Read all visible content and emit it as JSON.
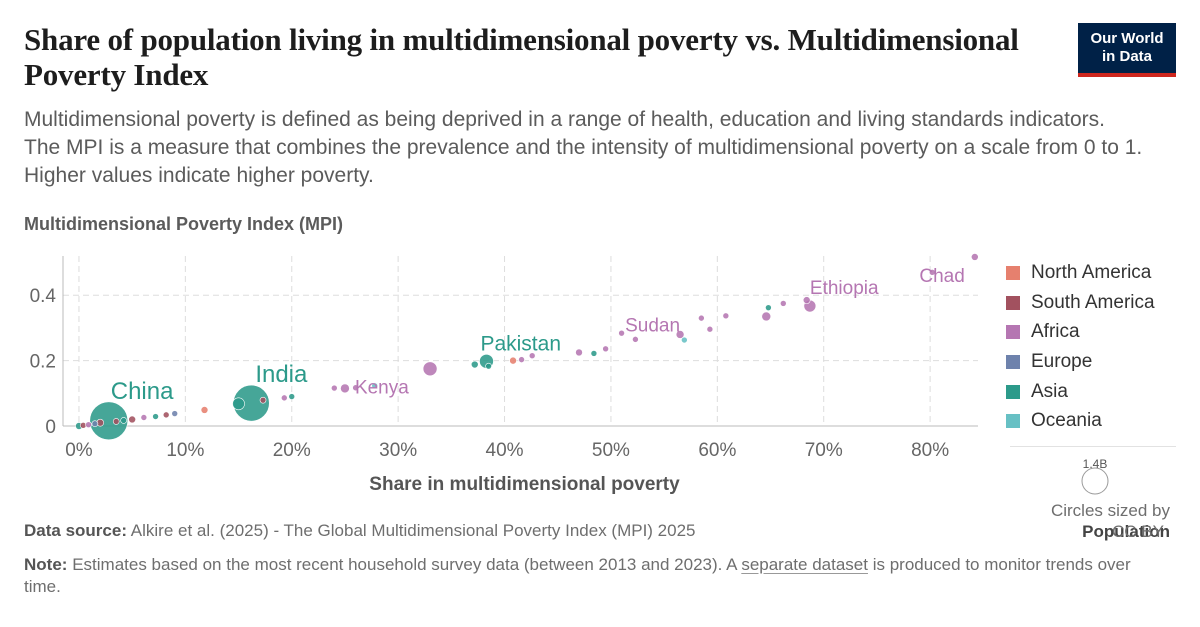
{
  "header": {
    "title": "Share of population living in multidimensional poverty vs. Multidimensional Poverty Index",
    "subtitle": "Multidimensional poverty is defined as being deprived in a range of health, education and living standards indicators. The MPI is a measure that combines the prevalence and the intensity of multidimensional poverty on a scale from 0 to 1. Higher values indicate higher poverty.",
    "logo_line1": "Our World",
    "logo_line2": "in Data"
  },
  "legend": {
    "items": [
      {
        "label": "North America",
        "color": "#e6806e"
      },
      {
        "label": "South America",
        "color": "#a2515f"
      },
      {
        "label": "Africa",
        "color": "#b576b2"
      },
      {
        "label": "Europe",
        "color": "#6e82ac"
      },
      {
        "label": "Asia",
        "color": "#2c9a8a"
      },
      {
        "label": "Oceania",
        "color": "#67c0c4"
      }
    ],
    "size_value": "1.4B",
    "size_caption": "Circles sized by",
    "size_variable": "Population"
  },
  "footer": {
    "source_label": "Data source:",
    "source_text": "Alkire et al. (2025) - The Global Multidimensional Poverty Index (MPI) 2025",
    "note_label": "Note:",
    "note_text_before": "Estimates based on the most recent household survey data (between 2013 and 2023). A",
    "note_link": "separate dataset",
    "note_text_after": "is produced to monitor trends over time.",
    "license": "CC BY"
  },
  "chart_data": {
    "type": "scatter",
    "xlabel": "Share in multidimensional poverty",
    "ylabel": "Multidimensional Poverty Index (MPI)",
    "xlim": [
      -1.5,
      84.5
    ],
    "ylim": [
      0,
      0.52
    ],
    "xticks": [
      0,
      10,
      20,
      30,
      40,
      50,
      60,
      70,
      80
    ],
    "xtick_labels": [
      "0%",
      "10%",
      "20%",
      "30%",
      "40%",
      "50%",
      "60%",
      "70%",
      "80%"
    ],
    "yticks": [
      0,
      0.2,
      0.4
    ],
    "ytick_labels": [
      "0",
      "0.2",
      "0.4"
    ],
    "grid": true,
    "points": [
      {
        "x": 2.8,
        "y": 0.016,
        "region": "Asia",
        "r": 19,
        "label": "China"
      },
      {
        "x": 16.2,
        "y": 0.07,
        "region": "Asia",
        "r": 18,
        "label": "India"
      },
      {
        "x": 38.3,
        "y": 0.198,
        "region": "Asia",
        "r": 7,
        "label": "Pakistan"
      },
      {
        "x": 25.0,
        "y": 0.115,
        "region": "Africa",
        "r": 4.5,
        "label": "Kenya"
      },
      {
        "x": 56.5,
        "y": 0.28,
        "region": "Africa",
        "r": 4,
        "label": "Sudan"
      },
      {
        "x": 68.7,
        "y": 0.367,
        "region": "Africa",
        "r": 6,
        "label": "Ethiopia"
      },
      {
        "x": 84.2,
        "y": 0.517,
        "region": "Africa",
        "r": 3.5,
        "label": "Chad"
      },
      {
        "x": 0.0,
        "y": 0.0,
        "region": "Asia",
        "r": 3.5
      },
      {
        "x": 0.4,
        "y": 0.002,
        "region": "South America",
        "r": 3
      },
      {
        "x": 0.9,
        "y": 0.004,
        "region": "Africa",
        "r": 3
      },
      {
        "x": 1.5,
        "y": 0.007,
        "region": "Europe",
        "r": 3
      },
      {
        "x": 2.0,
        "y": 0.01,
        "region": "South America",
        "r": 3.5
      },
      {
        "x": 3.5,
        "y": 0.014,
        "region": "South America",
        "r": 3
      },
      {
        "x": 4.2,
        "y": 0.017,
        "region": "Asia",
        "r": 3
      },
      {
        "x": 5.0,
        "y": 0.02,
        "region": "South America",
        "r": 3.5
      },
      {
        "x": 6.1,
        "y": 0.026,
        "region": "Africa",
        "r": 3
      },
      {
        "x": 7.2,
        "y": 0.029,
        "region": "Asia",
        "r": 3
      },
      {
        "x": 8.2,
        "y": 0.034,
        "region": "South America",
        "r": 3
      },
      {
        "x": 9.0,
        "y": 0.038,
        "region": "Europe",
        "r": 3
      },
      {
        "x": 11.8,
        "y": 0.049,
        "region": "North America",
        "r": 3.5
      },
      {
        "x": 15.0,
        "y": 0.068,
        "region": "Asia",
        "r": 6
      },
      {
        "x": 17.3,
        "y": 0.079,
        "region": "South America",
        "r": 3
      },
      {
        "x": 19.3,
        "y": 0.086,
        "region": "Africa",
        "r": 3
      },
      {
        "x": 20.0,
        "y": 0.09,
        "region": "Asia",
        "r": 3
      },
      {
        "x": 24.0,
        "y": 0.116,
        "region": "Africa",
        "r": 3
      },
      {
        "x": 26.0,
        "y": 0.117,
        "region": "Africa",
        "r": 3
      },
      {
        "x": 27.8,
        "y": 0.123,
        "region": "Oceania",
        "r": 3
      },
      {
        "x": 33.0,
        "y": 0.175,
        "region": "Africa",
        "r": 7
      },
      {
        "x": 37.2,
        "y": 0.188,
        "region": "Asia",
        "r": 3.5
      },
      {
        "x": 38.5,
        "y": 0.183,
        "region": "Asia",
        "r": 3
      },
      {
        "x": 40.8,
        "y": 0.2,
        "region": "North America",
        "r": 3.5
      },
      {
        "x": 41.6,
        "y": 0.203,
        "region": "Africa",
        "r": 3
      },
      {
        "x": 42.6,
        "y": 0.215,
        "region": "Africa",
        "r": 3
      },
      {
        "x": 47.0,
        "y": 0.225,
        "region": "Africa",
        "r": 3.5
      },
      {
        "x": 48.4,
        "y": 0.222,
        "region": "Asia",
        "r": 3
      },
      {
        "x": 49.5,
        "y": 0.236,
        "region": "Africa",
        "r": 3
      },
      {
        "x": 51.0,
        "y": 0.284,
        "region": "Africa",
        "r": 3
      },
      {
        "x": 52.3,
        "y": 0.265,
        "region": "Africa",
        "r": 3
      },
      {
        "x": 56.9,
        "y": 0.263,
        "region": "Oceania",
        "r": 3
      },
      {
        "x": 58.5,
        "y": 0.33,
        "region": "Africa",
        "r": 3
      },
      {
        "x": 59.3,
        "y": 0.296,
        "region": "Africa",
        "r": 3
      },
      {
        "x": 60.8,
        "y": 0.337,
        "region": "Africa",
        "r": 3
      },
      {
        "x": 64.6,
        "y": 0.335,
        "region": "Africa",
        "r": 4.5
      },
      {
        "x": 64.8,
        "y": 0.362,
        "region": "Asia",
        "r": 3
      },
      {
        "x": 66.2,
        "y": 0.375,
        "region": "Africa",
        "r": 3
      },
      {
        "x": 68.4,
        "y": 0.385,
        "region": "Africa",
        "r": 3.5
      },
      {
        "x": 80.2,
        "y": 0.47,
        "region": "Africa",
        "r": 3
      }
    ]
  }
}
